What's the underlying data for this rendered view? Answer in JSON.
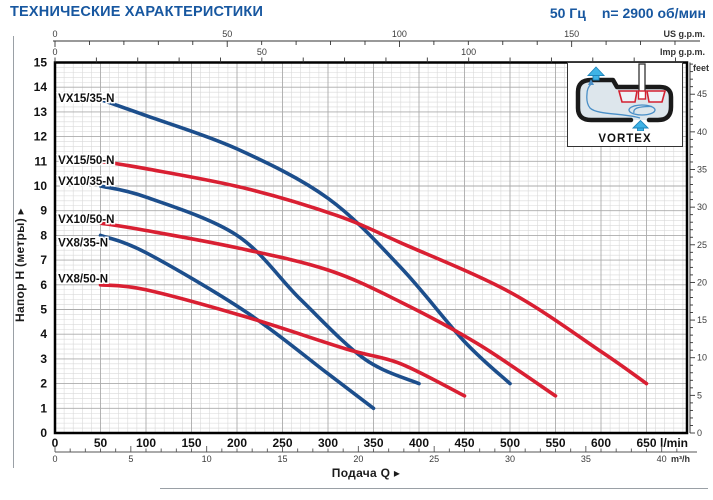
{
  "header": {
    "title": "ТЕХНИЧЕСКИЕ ХАРАКТЕРИСТИКИ",
    "frequency": "50 Гц",
    "speed": "n= 2900 об/мин"
  },
  "inset": {
    "label": "VORTEX"
  },
  "chart_data": {
    "type": "line",
    "title": "Pump performance curves",
    "grid": true,
    "x_axis": {
      "label": "Подача Q  ▸",
      "unit": "l/min",
      "range": [
        0,
        695
      ],
      "major_step": 50,
      "minor_step": 10,
      "tick_labels": [
        0,
        50,
        100,
        150,
        200,
        250,
        300,
        350,
        400,
        450,
        500,
        550,
        600,
        650
      ]
    },
    "y_axis": {
      "label": "Напор H (метры)  ▸",
      "unit": "м",
      "range": [
        0,
        15
      ],
      "major_step": 1,
      "minor_step": 0.2,
      "tick_labels": [
        0,
        1,
        2,
        3,
        4,
        5,
        6,
        7,
        8,
        9,
        10,
        11,
        12,
        13,
        14,
        15
      ]
    },
    "secondary_axes": {
      "us_gpm": {
        "label": "US g.p.m.",
        "lmin_per_unit": 3.785,
        "major_labels": [
          0,
          50,
          100,
          150
        ],
        "minor_step": 10
      },
      "imp_gpm": {
        "label": "Imp g.p.m.",
        "lmin_per_unit": 4.546,
        "major_labels": [
          0,
          50,
          100
        ],
        "minor_step": 10
      },
      "m3_h": {
        "label": "m³/h",
        "lmin_per_unit": 16.667,
        "major_labels": [
          0,
          5,
          10,
          15,
          20,
          25,
          30,
          35,
          40
        ],
        "minor_step": 1
      },
      "feet": {
        "label": "feet",
        "m_per_unit": 0.3048,
        "major_labels": [
          0,
          5,
          10,
          15,
          20,
          25,
          30,
          35,
          40,
          45
        ],
        "minor_step": 1
      }
    },
    "colors": {
      "blue": "#1c4e8c",
      "red": "#d91f32"
    },
    "series": [
      {
        "name": "VX15/35-N",
        "color": "#1c4e8c",
        "label_q": 3.5,
        "label_h": 13.4,
        "points": [
          [
            50,
            13.5
          ],
          [
            100,
            12.85
          ],
          [
            200,
            11.5
          ],
          [
            300,
            9.5
          ],
          [
            380,
            6.7
          ],
          [
            450,
            3.7
          ],
          [
            500,
            2.0
          ]
        ]
      },
      {
        "name": "VX15/50-N",
        "color": "#d91f32",
        "label_q": 3.5,
        "label_h": 10.9,
        "points": [
          [
            50,
            11.0
          ],
          [
            100,
            10.7
          ],
          [
            210,
            9.9
          ],
          [
            310,
            8.8
          ],
          [
            380,
            7.7
          ],
          [
            500,
            5.7
          ],
          [
            600,
            3.3
          ],
          [
            650,
            2.0
          ]
        ]
      },
      {
        "name": "VX10/35-N",
        "color": "#1c4e8c",
        "label_q": 3.5,
        "label_h": 10.05,
        "points": [
          [
            50,
            10.0
          ],
          [
            100,
            9.55
          ],
          [
            200,
            8.0
          ],
          [
            270,
            5.4
          ],
          [
            340,
            3.0
          ],
          [
            400,
            2.0
          ]
        ]
      },
      {
        "name": "VX10/50-N",
        "color": "#d91f32",
        "label_q": 3.5,
        "label_h": 8.5,
        "points": [
          [
            50,
            8.5
          ],
          [
            100,
            8.2
          ],
          [
            200,
            7.5
          ],
          [
            300,
            6.6
          ],
          [
            380,
            5.3
          ],
          [
            465,
            3.6
          ],
          [
            550,
            1.5
          ]
        ]
      },
      {
        "name": "VX8/35-N",
        "color": "#1c4e8c",
        "label_q": 3.5,
        "label_h": 7.55,
        "points": [
          [
            50,
            8.0
          ],
          [
            100,
            7.3
          ],
          [
            210,
            4.9
          ],
          [
            300,
            2.4
          ],
          [
            350,
            1.0
          ]
        ]
      },
      {
        "name": "VX8/50-N",
        "color": "#d91f32",
        "label_q": 3.5,
        "label_h": 6.1,
        "points": [
          [
            50,
            6.0
          ],
          [
            100,
            5.8
          ],
          [
            210,
            4.7
          ],
          [
            320,
            3.4
          ],
          [
            380,
            2.8
          ],
          [
            450,
            1.5
          ]
        ]
      }
    ]
  }
}
